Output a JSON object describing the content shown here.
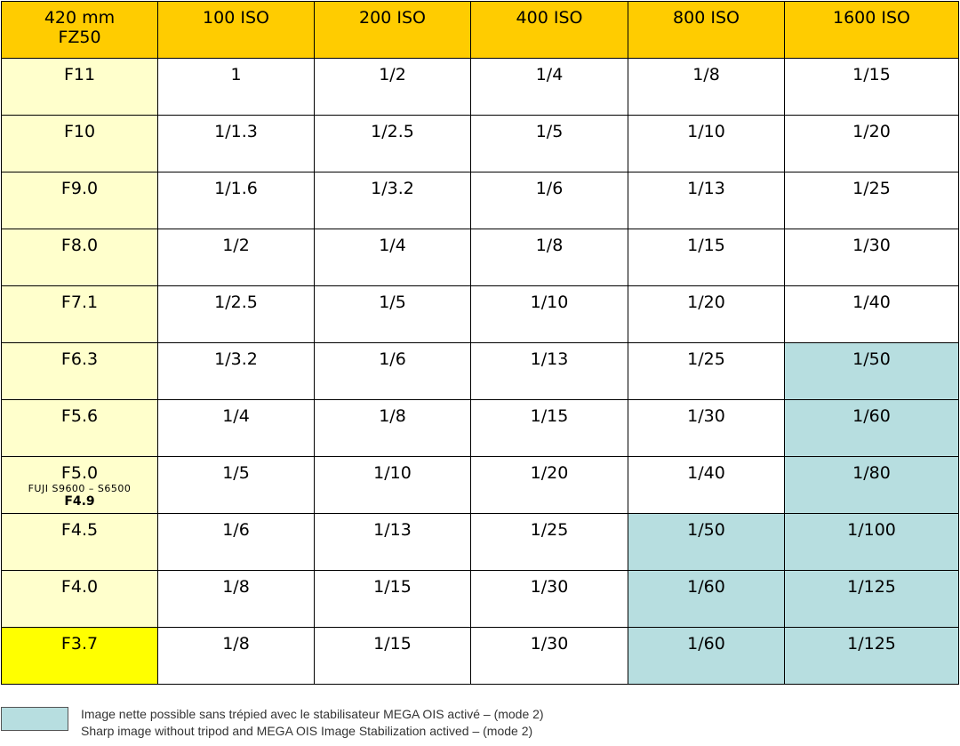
{
  "header": {
    "corner_line1": "420 mm",
    "corner_line2": "FZ50",
    "columns": [
      "100 ISO",
      "200 ISO",
      "400 ISO",
      "800 ISO",
      "1600 ISO"
    ]
  },
  "rows": [
    {
      "aperture": "F11",
      "values": [
        "1",
        "1/2",
        "1/4",
        "1/8",
        "1/15"
      ],
      "stabilized": [
        false,
        false,
        false,
        false,
        false
      ]
    },
    {
      "aperture": "F10",
      "values": [
        "1/1.3",
        "1/2.5",
        "1/5",
        "1/10",
        "1/20"
      ],
      "stabilized": [
        false,
        false,
        false,
        false,
        false
      ]
    },
    {
      "aperture": "F9.0",
      "values": [
        "1/1.6",
        "1/3.2",
        "1/6",
        "1/13",
        "1/25"
      ],
      "stabilized": [
        false,
        false,
        false,
        false,
        false
      ]
    },
    {
      "aperture": "F8.0",
      "values": [
        "1/2",
        "1/4",
        "1/8",
        "1/15",
        "1/30"
      ],
      "stabilized": [
        false,
        false,
        false,
        false,
        false
      ]
    },
    {
      "aperture": "F7.1",
      "values": [
        "1/2.5",
        "1/5",
        "1/10",
        "1/20",
        "1/40"
      ],
      "stabilized": [
        false,
        false,
        false,
        false,
        false
      ]
    },
    {
      "aperture": "F6.3",
      "values": [
        "1/3.2",
        "1/6",
        "1/13",
        "1/25",
        "1/50"
      ],
      "stabilized": [
        false,
        false,
        false,
        false,
        true
      ]
    },
    {
      "aperture": "F5.6",
      "values": [
        "1/4",
        "1/8",
        "1/15",
        "1/30",
        "1/60"
      ],
      "stabilized": [
        false,
        false,
        false,
        false,
        true
      ]
    },
    {
      "aperture": "F5.0",
      "sub1": "FUJI S9600 – S6500",
      "sub2": "F4.9",
      "values": [
        "1/5",
        "1/10",
        "1/20",
        "1/40",
        "1/80"
      ],
      "stabilized": [
        false,
        false,
        false,
        false,
        true
      ]
    },
    {
      "aperture": "F4.5",
      "values": [
        "1/6",
        "1/13",
        "1/25",
        "1/50",
        "1/100"
      ],
      "stabilized": [
        false,
        false,
        false,
        true,
        true
      ]
    },
    {
      "aperture": "F4.0",
      "values": [
        "1/8",
        "1/15",
        "1/30",
        "1/60",
        "1/125"
      ],
      "stabilized": [
        false,
        false,
        false,
        true,
        true
      ]
    },
    {
      "aperture": "F3.7",
      "values": [
        "1/8",
        "1/15",
        "1/30",
        "1/60",
        "1/125"
      ],
      "stabilized": [
        false,
        false,
        false,
        true,
        true
      ],
      "highlight": true
    }
  ],
  "legend": {
    "line_fr": "Image nette possible sans trépied avec le stabilisateur MEGA OIS activé – (mode 2)",
    "line_en": "Sharp image without tripod and MEGA OIS Image Stabilization actived – (mode 2)"
  },
  "colors": {
    "header_bg": "#ffcc00",
    "corner_bg": "#ffff00",
    "row_header_bg": "#ffffcc",
    "stabilized_bg": "#b7dee0"
  }
}
